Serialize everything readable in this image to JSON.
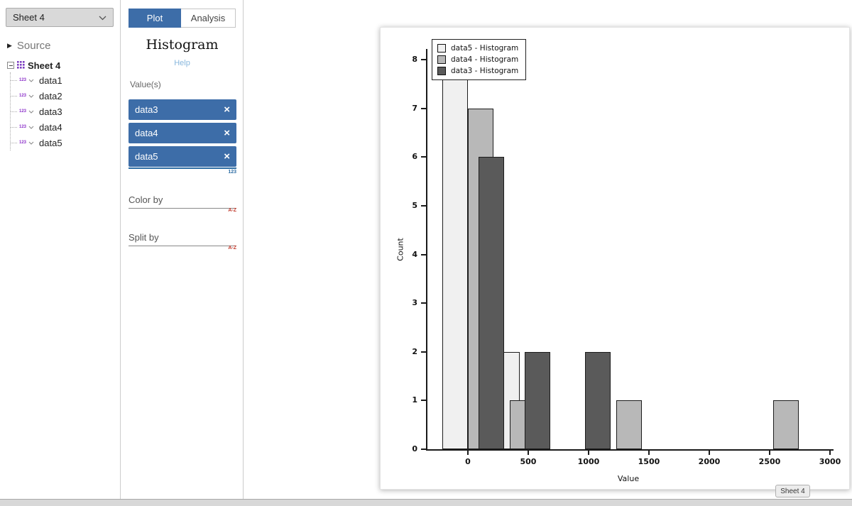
{
  "sidebar": {
    "sheet_selector": {
      "value": "Sheet 4"
    },
    "source_label": "Source",
    "tree": {
      "root_label": "Sheet 4",
      "item_icon": "123",
      "children": [
        "data1",
        "data2",
        "data3",
        "data4",
        "data5"
      ]
    }
  },
  "panel": {
    "tabs": {
      "plot": "Plot",
      "analysis": "Analysis"
    },
    "title": "Histogram",
    "help_label": "Help",
    "values_label": "Value(s)",
    "chips": [
      "data3",
      "data4",
      "data5"
    ],
    "dropzone_icon": "123",
    "color_by": {
      "label": "Color by",
      "sort_icon": "A-Z"
    },
    "split_by": {
      "label": "Split by",
      "sort_icon": "A-Z"
    }
  },
  "chart_data": {
    "type": "bar",
    "title": "",
    "xlabel": "Value",
    "ylabel": "Count",
    "xlim": [
      -335,
      3000
    ],
    "ylim": [
      0,
      8
    ],
    "xticks": [
      0,
      500,
      1000,
      1500,
      2000,
      2500,
      3000
    ],
    "yticks": [
      0,
      1,
      2,
      3,
      4,
      5,
      6,
      7,
      8
    ],
    "grid": false,
    "legend": {
      "position": "upper-left",
      "entries": [
        {
          "label": "data5 - Histogram",
          "color": "#f0f0f0"
        },
        {
          "label": "data4 - Histogram",
          "color": "#b8b8b8"
        },
        {
          "label": "data3 - Histogram",
          "color": "#5a5a5a"
        }
      ]
    },
    "series": [
      {
        "name": "data5",
        "color": "#f0f0f0",
        "bins": [
          {
            "x0": -210,
            "x1": 0,
            "count": 8
          },
          {
            "x0": 220,
            "x1": 430,
            "count": 2
          }
        ]
      },
      {
        "name": "data4",
        "color": "#b8b8b8",
        "bins": [
          {
            "x0": 0,
            "x1": 210,
            "count": 7
          },
          {
            "x0": 350,
            "x1": 560,
            "count": 1
          },
          {
            "x0": 1230,
            "x1": 1440,
            "count": 1
          },
          {
            "x0": 2530,
            "x1": 2740,
            "count": 1
          }
        ]
      },
      {
        "name": "data3",
        "color": "#5a5a5a",
        "bins": [
          {
            "x0": 90,
            "x1": 300,
            "count": 6
          },
          {
            "x0": 470,
            "x1": 680,
            "count": 2
          },
          {
            "x0": 970,
            "x1": 1180,
            "count": 2
          }
        ]
      }
    ],
    "sheet_tab": "Sheet 4"
  },
  "colors": {
    "accent_blue": "#3d6da8",
    "icon_purple": "#7d3fc1",
    "sort_red": "#c0392b",
    "help_blue": "#88b7dd"
  }
}
